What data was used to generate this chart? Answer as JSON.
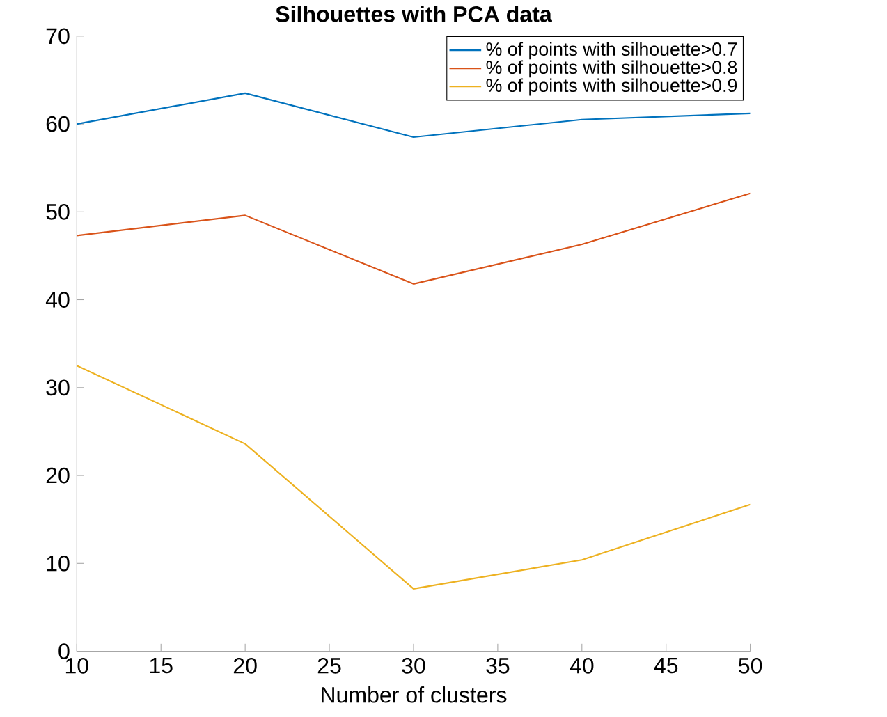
{
  "chart_data": {
    "type": "line",
    "title": "Silhouettes with PCA data",
    "xlabel": "Number of clusters",
    "x": [
      10,
      20,
      30,
      40,
      50
    ],
    "series": [
      {
        "name": "% of points with silhouette>0.7",
        "color": "#0072bd",
        "values": [
          60,
          63.5,
          58.5,
          60.5,
          61.2
        ]
      },
      {
        "name": "% of points with silhouette>0.8",
        "color": "#d95319",
        "values": [
          47.3,
          49.6,
          41.8,
          46.3,
          52.1
        ]
      },
      {
        "name": "% of points with silhouette>0.9",
        "color": "#edb120",
        "values": [
          32.5,
          23.6,
          7.1,
          10.4,
          16.7
        ]
      }
    ],
    "xlim": [
      10,
      50
    ],
    "ylim": [
      0,
      70
    ],
    "xticks": [
      10,
      15,
      20,
      25,
      30,
      35,
      40,
      45,
      50
    ],
    "yticks": [
      0,
      10,
      20,
      30,
      40,
      50,
      60,
      70
    ],
    "legend": "top right",
    "grid": false,
    "marker": "none",
    "line_style": "solid"
  }
}
